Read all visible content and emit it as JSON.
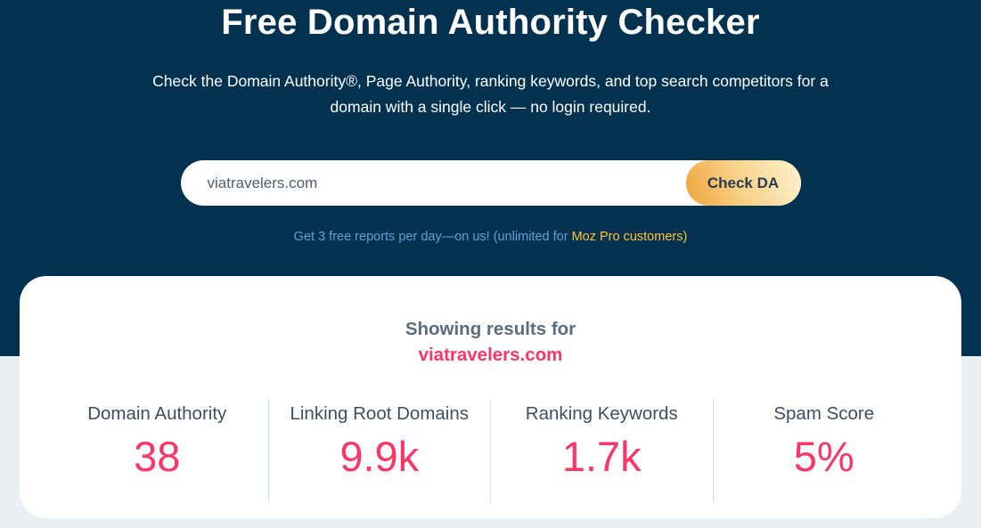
{
  "theme": {
    "navy_bg": "#033150",
    "light_bg": "#e9eff2",
    "pink": "#fc3768",
    "link_blue": "#5fa2d8",
    "gold": "#fcc53c",
    "button_gradient_start": "#efa43b",
    "button_gradient_end": "#fdf2d0",
    "label_slate": "#3e4f63",
    "heading_slate": "#5b6b80"
  },
  "hero": {
    "title": "Free Domain Authority Checker",
    "subtitle_line1": "Check the Domain Authority®, Page Authority, ranking keywords, and top search competitors for a",
    "subtitle_line2": "domain with a single click — no login required.",
    "search": {
      "value": "viatravelers.com",
      "button_label": "Check DA"
    },
    "note_prefix": "Get 3 free reports per day—on us! (unlimited for ",
    "note_link": "Moz Pro customers",
    "note_suffix": ")"
  },
  "results": {
    "heading": "Showing results for",
    "domain": "viatravelers.com",
    "metrics": [
      {
        "label": "Domain Authority",
        "value": "38"
      },
      {
        "label": "Linking Root Domains",
        "value": "9.9k"
      },
      {
        "label": "Ranking Keywords",
        "value": "1.7k"
      },
      {
        "label": "Spam Score",
        "value": "5%"
      }
    ]
  }
}
